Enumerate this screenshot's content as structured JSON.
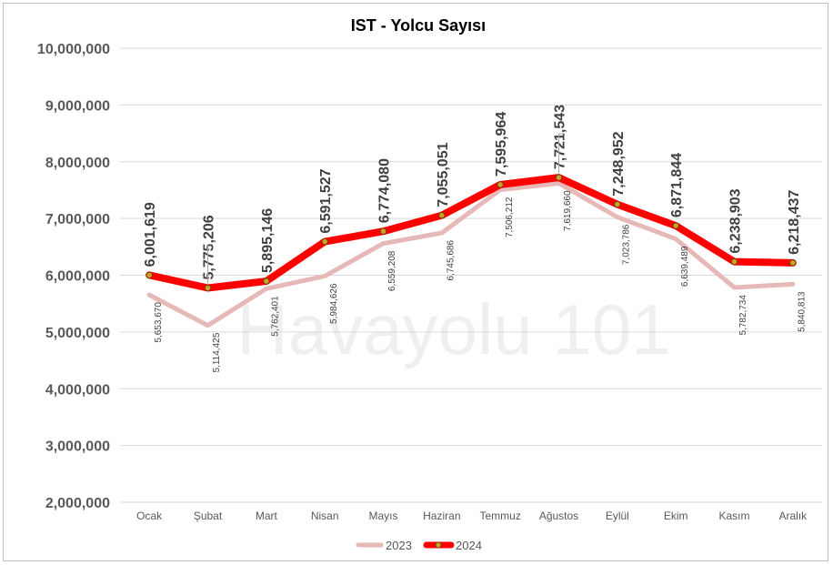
{
  "watermark": "Havayolu 101",
  "chart_data": {
    "type": "line",
    "title": "IST - Yolcu Sayısı",
    "categories": [
      "Ocak",
      "Şubat",
      "Mart",
      "Nisan",
      "Mayıs",
      "Haziran",
      "Temmuz",
      "Ağustos",
      "Eylül",
      "Ekim",
      "Kasım",
      "Aralık"
    ],
    "ylim": [
      2000000,
      10000000
    ],
    "yticks": [
      "2,000,000",
      "3,000,000",
      "4,000,000",
      "5,000,000",
      "6,000,000",
      "7,000,000",
      "8,000,000",
      "9,000,000",
      "10,000,000"
    ],
    "grid": true,
    "legend_position": "bottom",
    "series": [
      {
        "name": "2023",
        "color": "#e6b8b7",
        "values": [
          5653670,
          5114425,
          5762401,
          5984626,
          6559208,
          6745686,
          7506212,
          7619660,
          7023786,
          6639489,
          5782734,
          5840813
        ],
        "labels": [
          "5,653,670",
          "5,114,425",
          "5,762,401",
          "5,984,626",
          "6,559,208",
          "6,745,686",
          "7,506,212",
          "7,619,660",
          "7,023,786",
          "6,639,489",
          "5,782,734",
          "5,840,813"
        ]
      },
      {
        "name": "2024",
        "color": "#ff0000",
        "marker_color": "#c9a227",
        "values": [
          6001619,
          5775206,
          5895146,
          6591527,
          6774080,
          7055051,
          7595964,
          7721543,
          7248952,
          6871844,
          6238903,
          6218437
        ],
        "labels": [
          "6,001,619",
          "5,775,206",
          "5,895,146",
          "6,591,527",
          "6,774,080",
          "7,055,051",
          "7,595,964",
          "7,721,543",
          "7,248,952",
          "6,871,844",
          "6,238,903",
          "6,218,437"
        ]
      }
    ]
  }
}
